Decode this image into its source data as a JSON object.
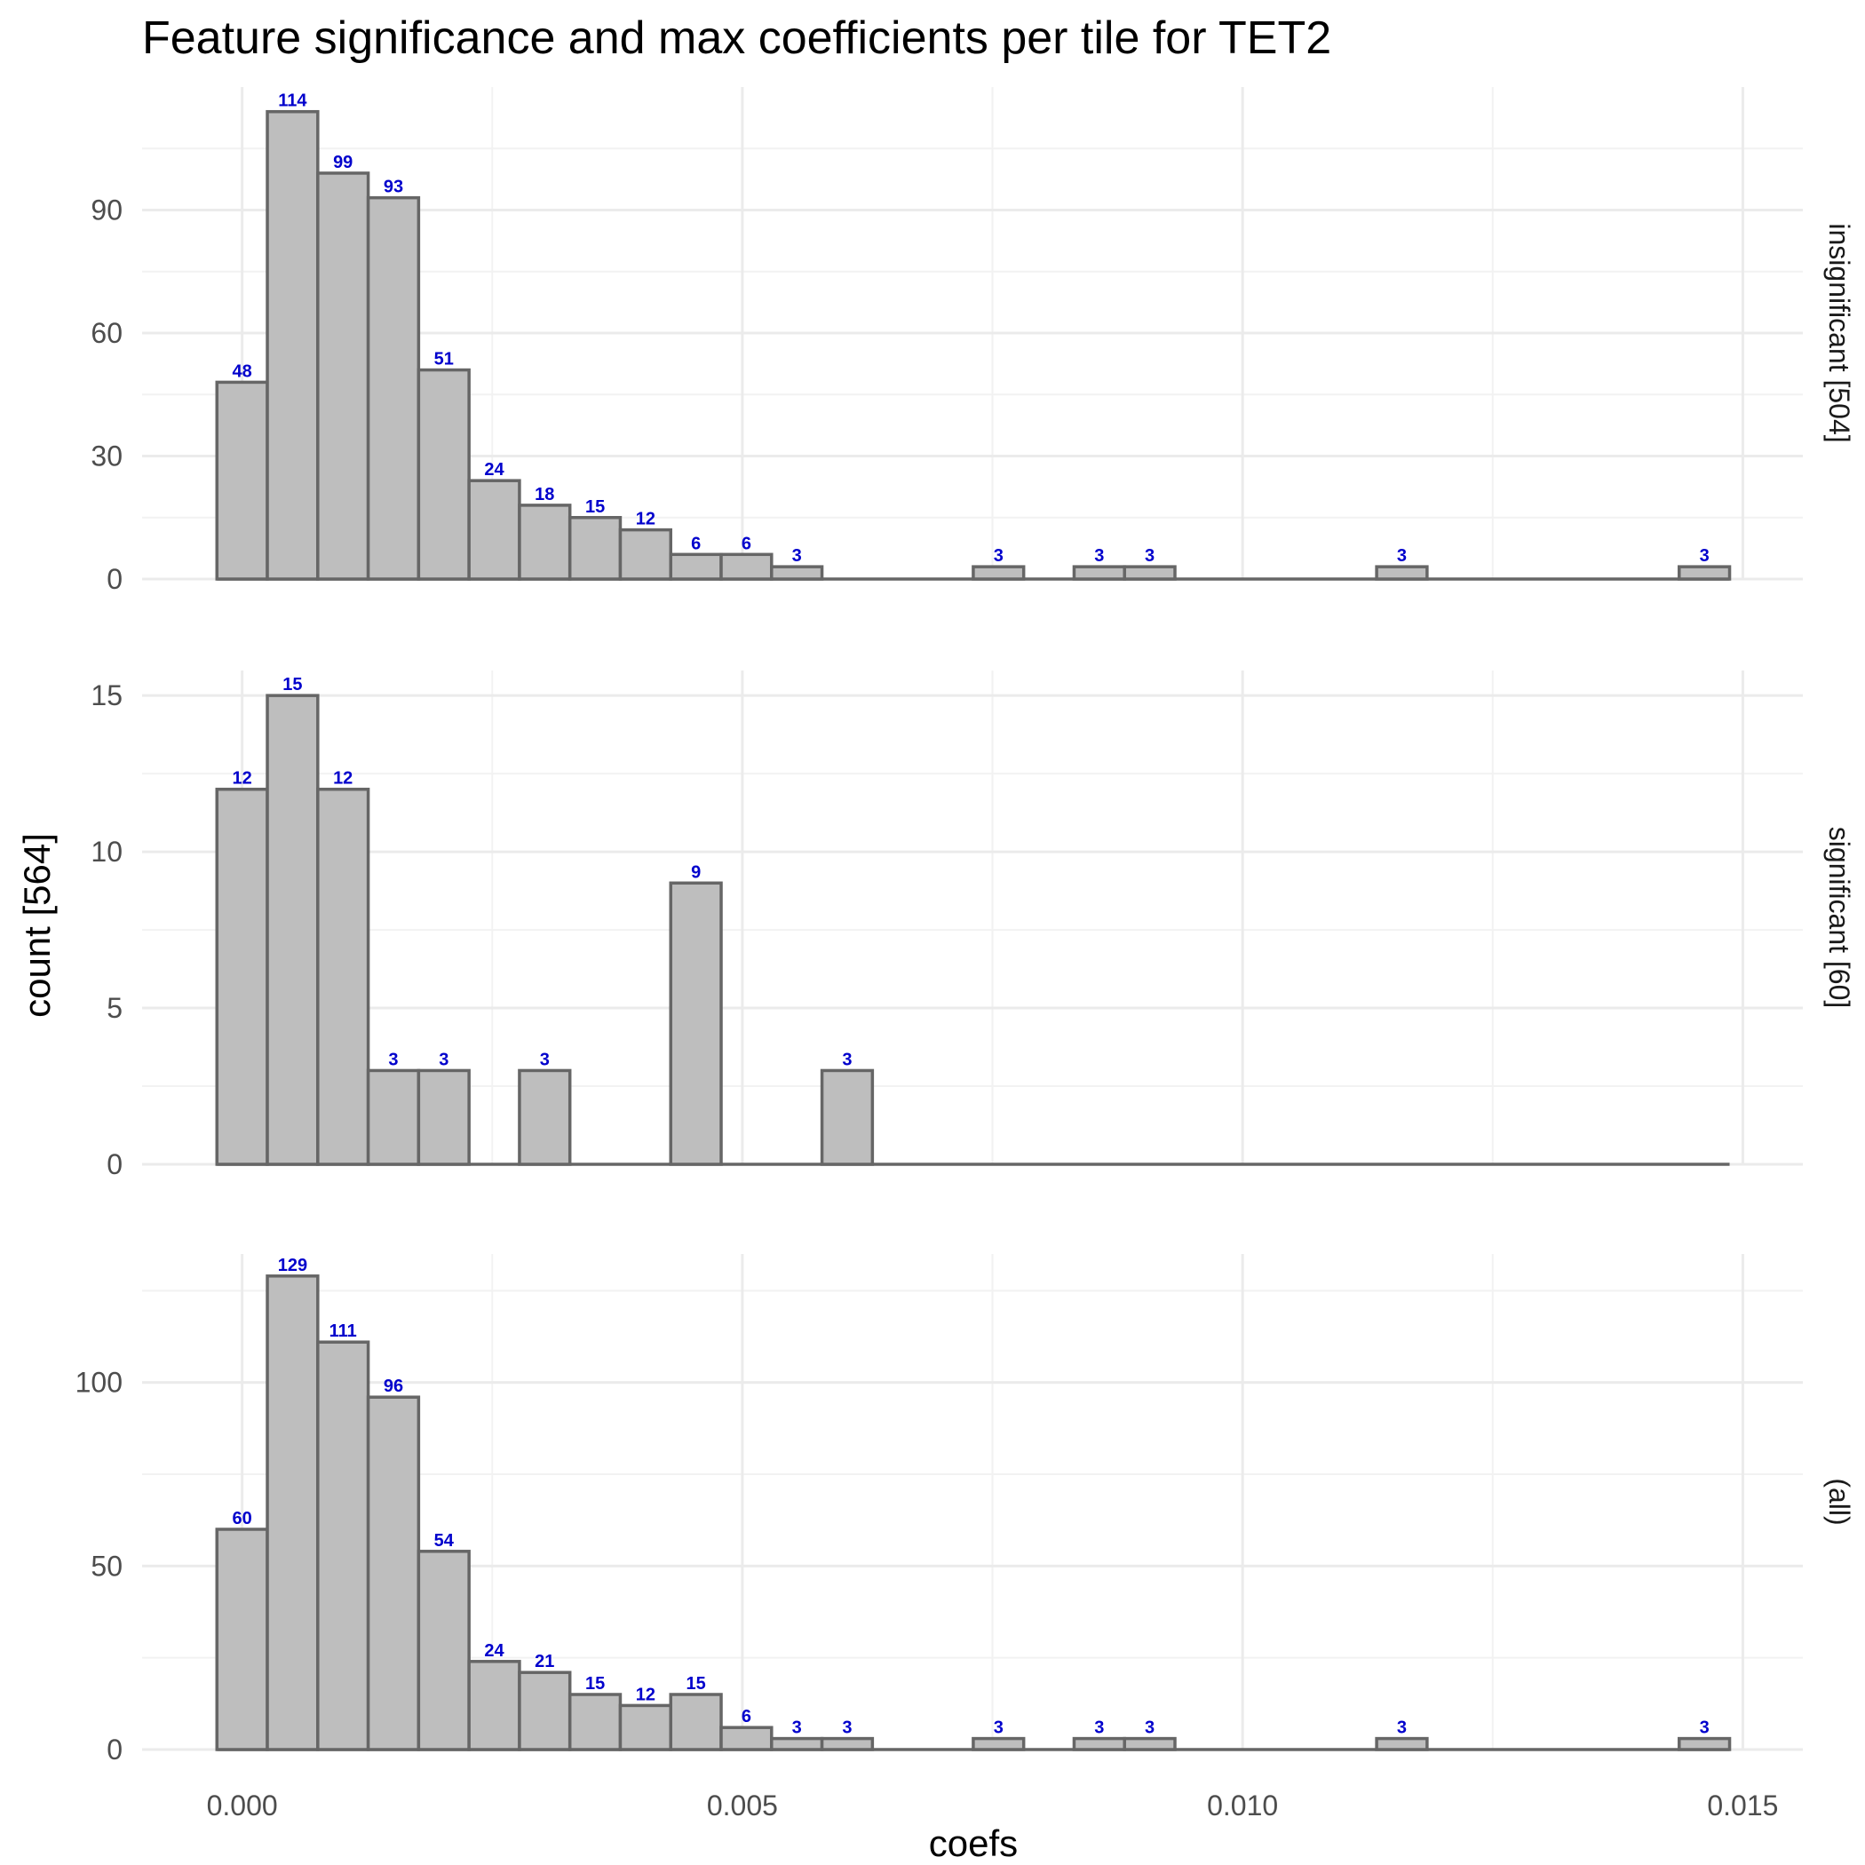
{
  "chart_data": {
    "type": "bar",
    "title": "Feature significance and max coefficients per tile for TET2",
    "xlabel": "coefs",
    "ylabel": "count [564]",
    "bin_width": 0.000504,
    "bin_starts": [
      -0.000252,
      0.000252,
      0.000756,
      0.00126,
      0.001764,
      0.002268,
      0.002772,
      0.003276,
      0.00378,
      0.004284,
      0.004788,
      0.005292,
      0.005796,
      0.0063,
      0.006804,
      0.007308,
      0.007812,
      0.008316,
      0.00882,
      0.009324,
      0.009828,
      0.010332,
      0.010836,
      0.01134,
      0.011844,
      0.012348,
      0.012852,
      0.013356,
      0.01386,
      0.014364
    ],
    "xlim": [
      -0.001,
      0.0156
    ],
    "x_ticks": [
      "0.000",
      "0.005",
      "0.010",
      "0.015"
    ],
    "x_tick_values": [
      0,
      0.005,
      0.01,
      0.015
    ],
    "bar_fill": "#bebebe",
    "bar_stroke": "#666666",
    "label_color": "#0000cc",
    "panels": [
      {
        "name": "insignificant [504]",
        "values": [
          48,
          114,
          99,
          93,
          51,
          24,
          18,
          15,
          12,
          6,
          6,
          3,
          0,
          0,
          0,
          3,
          0,
          3,
          3,
          0,
          0,
          0,
          0,
          3,
          0,
          0,
          0,
          0,
          0,
          3
        ],
        "ylim": [
          0,
          120
        ],
        "y_ticks": [
          "0",
          "30",
          "60",
          "90"
        ],
        "y_tick_values": [
          0,
          30,
          60,
          90
        ]
      },
      {
        "name": "significant [60]",
        "values": [
          12,
          15,
          12,
          3,
          3,
          0,
          3,
          0,
          0,
          9,
          0,
          0,
          3,
          0,
          0,
          0,
          0,
          0,
          0,
          0,
          0,
          0,
          0,
          0,
          0,
          0,
          0,
          0,
          0,
          0
        ],
        "ylim": [
          0,
          15.8
        ],
        "y_ticks": [
          "0",
          "5",
          "10",
          "15"
        ],
        "y_tick_values": [
          0,
          5,
          10,
          15
        ]
      },
      {
        "name": "(all)",
        "values": [
          60,
          129,
          111,
          96,
          54,
          24,
          21,
          15,
          12,
          15,
          6,
          3,
          3,
          0,
          0,
          3,
          0,
          3,
          3,
          0,
          0,
          0,
          0,
          3,
          0,
          0,
          0,
          0,
          0,
          3
        ],
        "ylim": [
          0,
          135
        ],
        "y_ticks": [
          "0",
          "50",
          "100"
        ],
        "y_tick_values": [
          0,
          50,
          100
        ]
      }
    ],
    "grid": true,
    "legend": "none"
  }
}
